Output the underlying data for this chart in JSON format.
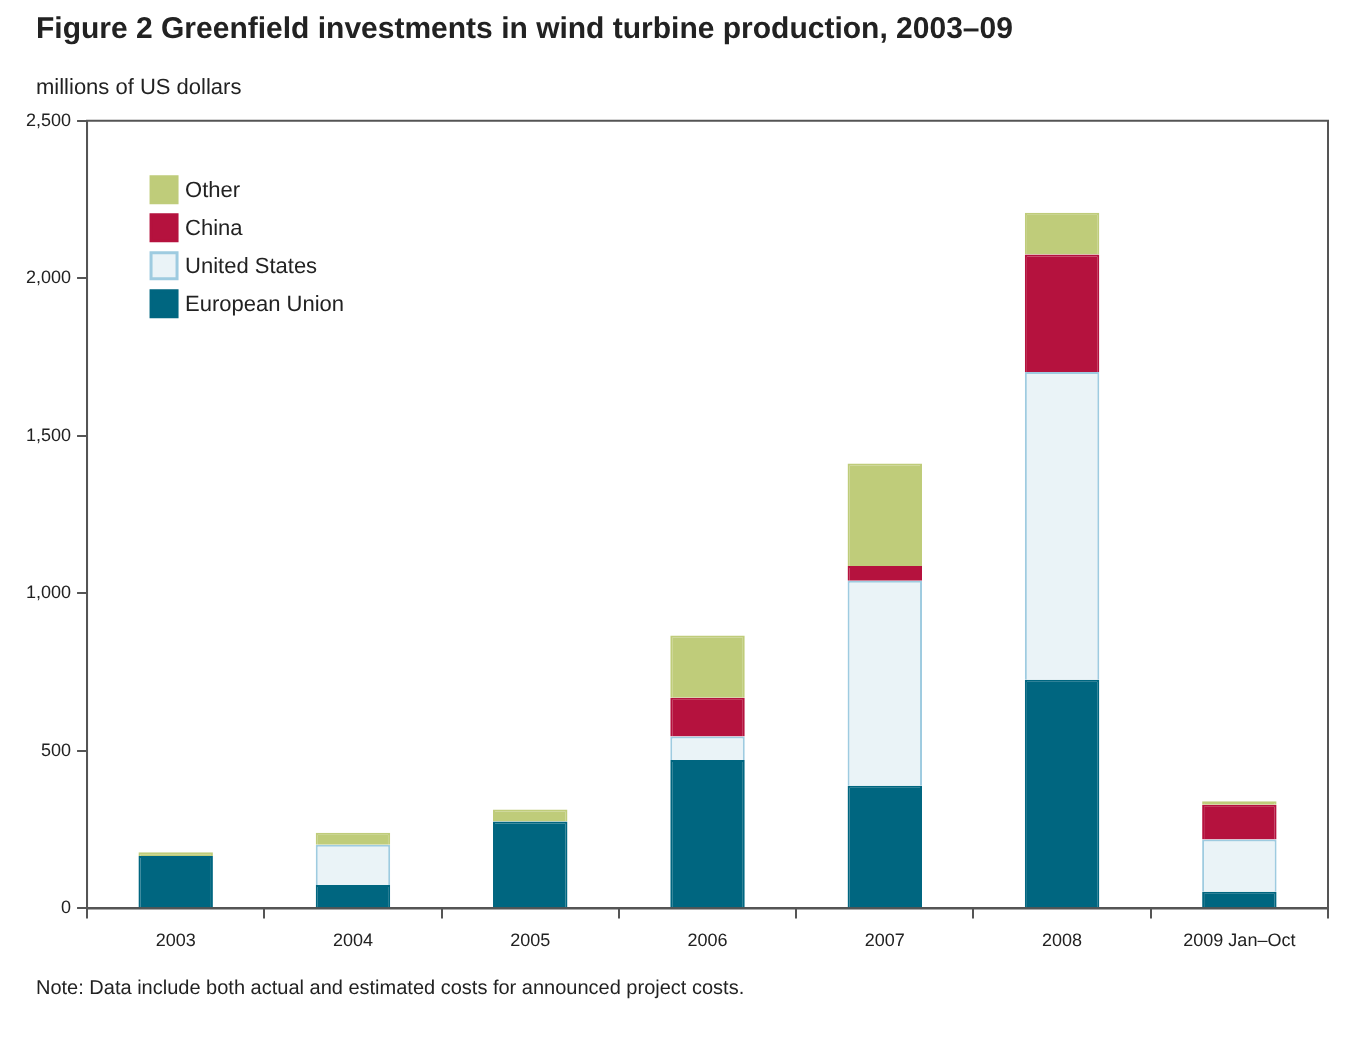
{
  "chart_data": {
    "type": "bar",
    "stacked": true,
    "title": "Figure 2  Greenfield investments in wind turbine production, 2003–09",
    "ylabel": "millions of US dollars",
    "categories": [
      "2003",
      "2004",
      "2005",
      "2006",
      "2007",
      "2008",
      "2009 Jan–Oct"
    ],
    "series": [
      {
        "name": "European Union",
        "color": "#006680",
        "values": [
          166,
          74,
          276,
          471,
          389,
          726,
          53
        ]
      },
      {
        "name": "United States",
        "color": "#eaf3f7",
        "values": [
          0,
          128,
          0,
          75,
          651,
          977,
          166
        ]
      },
      {
        "name": "China",
        "color": "#b5123e",
        "values": [
          0,
          0,
          0,
          123,
          47,
          373,
          110
        ]
      },
      {
        "name": "Other",
        "color": "#bfcc7a",
        "values": [
          12,
          38,
          38,
          197,
          325,
          132,
          11
        ]
      }
    ],
    "ylim": [
      0,
      2500
    ],
    "yticks": [
      0,
      500,
      {
        "value": 1000,
        "label": "1,000"
      },
      {
        "value": 1500,
        "label": "1,500"
      },
      {
        "value": 2000,
        "label": "2,000"
      },
      {
        "value": 2500,
        "label": "2,500"
      }
    ],
    "grid": false,
    "legend": "top left",
    "annotations": [
      "Note: Data include both actual and estimated costs for announced project costs."
    ]
  }
}
